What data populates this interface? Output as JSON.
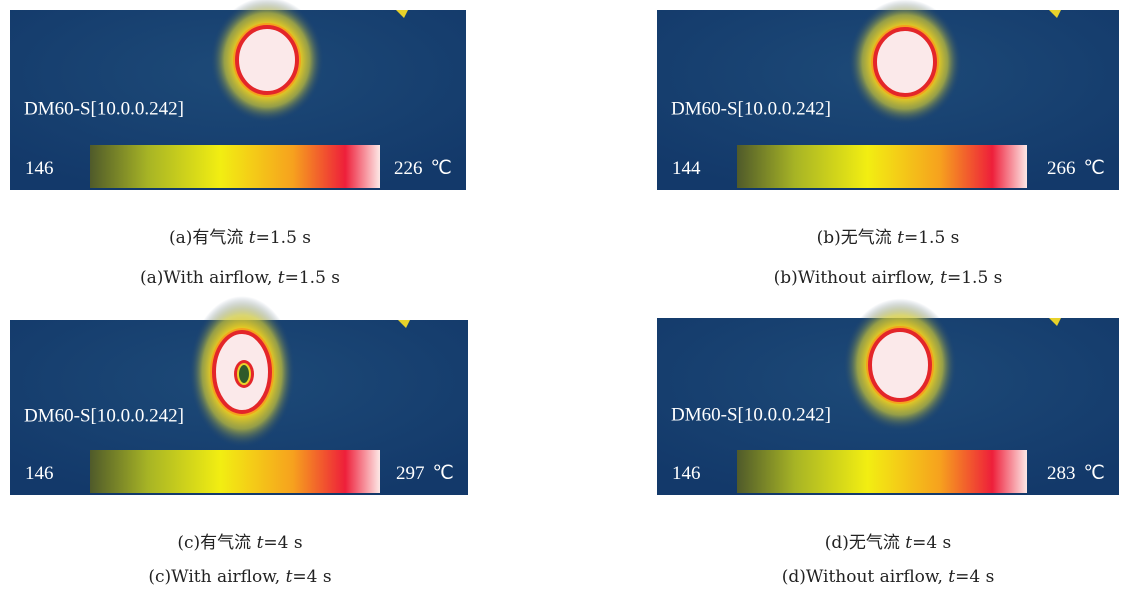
{
  "panels": [
    {
      "device": "DM60-S[10.0.0.242]",
      "min": 146,
      "max": 226,
      "unit": "℃",
      "caption_cn": {
        "prefix": "(a)有气流 ",
        "variable": "t",
        "suffix": "=1.5 s"
      },
      "caption_en": {
        "prefix": "(a)With airflow, ",
        "variable": "t",
        "suffix": "=1.5 s"
      }
    },
    {
      "device": "DM60-S[10.0.0.242]",
      "min": 144,
      "max": 266,
      "unit": "℃",
      "caption_cn": {
        "prefix": "(b)无气流 ",
        "variable": "t",
        "suffix": "=1.5 s"
      },
      "caption_en": {
        "prefix": "(b)Without airflow, ",
        "variable": "t",
        "suffix": "=1.5 s"
      }
    },
    {
      "device": "DM60-S[10.0.0.242]",
      "min": 146,
      "max": 297,
      "unit": "℃",
      "caption_cn": {
        "prefix": "(c)有气流 ",
        "variable": "t",
        "suffix": "=4 s"
      },
      "caption_en": {
        "prefix": "(c)With airflow, ",
        "variable": "t",
        "suffix": "=4 s"
      }
    },
    {
      "device": "DM60-S[10.0.0.242]",
      "min": 146,
      "max": 283,
      "unit": "℃",
      "caption_cn": {
        "prefix": "(d)无气流 ",
        "variable": "t",
        "suffix": "=4 s"
      },
      "caption_en": {
        "prefix": "(d)Without airflow, ",
        "variable": "t",
        "suffix": "=4 s"
      }
    }
  ]
}
